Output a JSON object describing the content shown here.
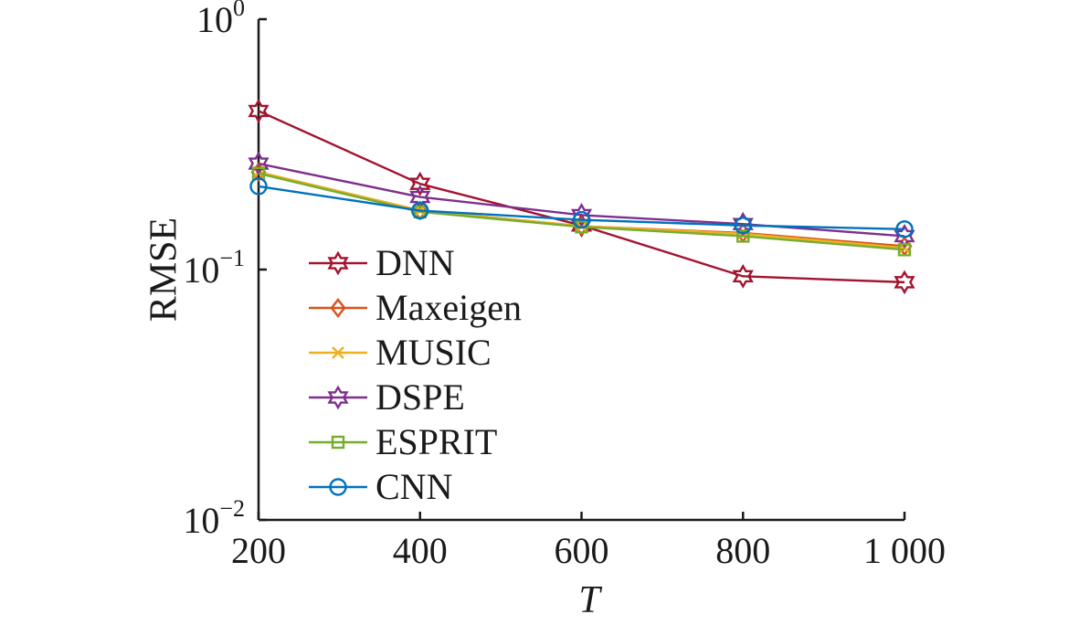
{
  "chart_data": {
    "type": "line",
    "xlabel": "T",
    "ylabel": "RMSE",
    "yscale": "log",
    "xlim": [
      200,
      1000
    ],
    "ylim": [
      0.01,
      1
    ],
    "x_ticks": [
      {
        "value": 200,
        "label": "200"
      },
      {
        "value": 400,
        "label": "400"
      },
      {
        "value": 600,
        "label": "600"
      },
      {
        "value": 800,
        "label": "800"
      },
      {
        "value": 1000,
        "label": "1 000"
      }
    ],
    "y_ticks": [
      {
        "value": 1,
        "base": "10",
        "exp": "0"
      },
      {
        "value": 0.1,
        "base": "10",
        "exp": "−1"
      },
      {
        "value": 0.01,
        "base": "10",
        "exp": "−2"
      }
    ],
    "legend_position": "bottom-left",
    "grid": false,
    "x": [
      200,
      400,
      600,
      800,
      1000
    ],
    "series": [
      {
        "name": "DNN",
        "color": "#a2142f",
        "marker": "hexagram",
        "values": [
          0.43,
          0.22,
          0.15,
          0.094,
          0.089
        ]
      },
      {
        "name": "Maxeigen",
        "color": "#d95319",
        "marker": "diamond",
        "values": [
          0.245,
          0.172,
          0.149,
          0.14,
          0.124
        ]
      },
      {
        "name": "MUSIC",
        "color": "#edb120",
        "marker": "x",
        "values": [
          0.245,
          0.172,
          0.149,
          0.139,
          0.122
        ]
      },
      {
        "name": "DSPE",
        "color": "#7e2f8e",
        "marker": "hexagram",
        "values": [
          0.265,
          0.195,
          0.165,
          0.152,
          0.136
        ]
      },
      {
        "name": "ESPRIT",
        "color": "#77ac30",
        "marker": "square",
        "values": [
          0.242,
          0.17,
          0.148,
          0.136,
          0.12
        ]
      },
      {
        "name": "CNN",
        "color": "#0072bd",
        "marker": "circle",
        "values": [
          0.215,
          0.172,
          0.158,
          0.15,
          0.145
        ]
      }
    ]
  }
}
